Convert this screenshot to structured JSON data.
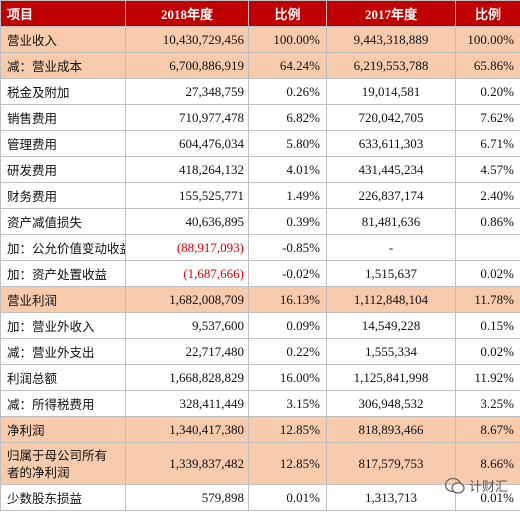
{
  "table": {
    "header": [
      "项目",
      "2018年度",
      "比例",
      "2017年度",
      "比例"
    ],
    "rows": [
      [
        "营业收入",
        "10,430,729,456",
        "100.00%",
        "9,443,318,889",
        "100.00%"
      ],
      [
        "减：营业成本",
        "6,700,886,919",
        "64.24%",
        "6,219,553,788",
        "65.86%"
      ],
      [
        "税金及附加",
        "27,348,759",
        "0.26%",
        "19,014,581",
        "0.20%"
      ],
      [
        "销售费用",
        "710,977,478",
        "6.82%",
        "720,042,705",
        "7.62%"
      ],
      [
        "管理费用",
        "604,476,034",
        "5.80%",
        "633,611,303",
        "6.71%"
      ],
      [
        "研发费用",
        "418,264,132",
        "4.01%",
        "431,445,234",
        "4.57%"
      ],
      [
        "财务费用",
        "155,525,771",
        "1.49%",
        "226,837,174",
        "2.40%"
      ],
      [
        "资产减值损失",
        "40,636,895",
        "0.39%",
        "81,481,636",
        "0.86%"
      ],
      [
        "加：公允价值变动收益",
        "(88,917,093)",
        "-0.85%",
        "-",
        ""
      ],
      [
        "加：资产处置收益",
        "(1,687,666)",
        "-0.02%",
        "1,515,637",
        "0.02%"
      ],
      [
        "营业利润",
        "1,682,008,709",
        "16.13%",
        "1,112,848,104",
        "11.78%"
      ],
      [
        "加：营业外收入",
        "9,537,600",
        "0.09%",
        "14,549,228",
        "0.15%"
      ],
      [
        "减：营业外支出",
        "22,717,480",
        "0.22%",
        "1,555,334",
        "0.02%"
      ],
      [
        "利润总额",
        "1,668,828,829",
        "16.00%",
        "1,125,841,998",
        "11.92%"
      ],
      [
        "减：所得税费用",
        "328,411,449",
        "3.15%",
        "306,948,532",
        "3.25%"
      ],
      [
        "净利润",
        "1,340,417,380",
        "12.85%",
        "818,893,466",
        "8.67%"
      ],
      [
        "归属于母公司所有者的净利润",
        "1,339,837,482",
        "12.85%",
        "817,579,753",
        "8.66%"
      ],
      [
        "少数股东损益",
        "579,898",
        "0.01%",
        "1,313,713",
        "0.01%"
      ]
    ]
  },
  "watermark": "计财汇"
}
